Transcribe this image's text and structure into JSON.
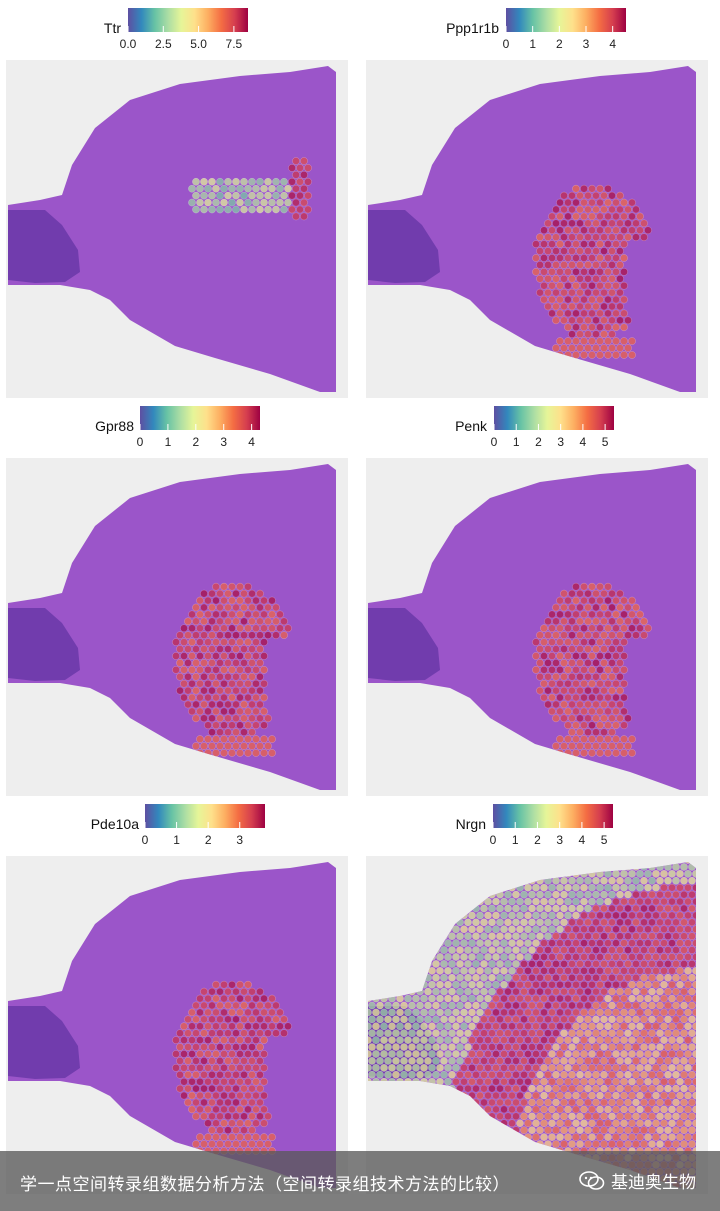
{
  "chart_data": [
    {
      "type": "heatmap",
      "gene": "Ttr",
      "legend_ticks": [
        "0.0",
        "2.5",
        "5.0",
        "7.5"
      ],
      "scale_min": 0,
      "scale_max": 8.5,
      "pattern": "ventricle"
    },
    {
      "type": "heatmap",
      "gene": "Ppp1r1b",
      "legend_ticks": [
        "0",
        "1",
        "2",
        "3",
        "4"
      ],
      "scale_min": 0,
      "scale_max": 4.5,
      "pattern": "striatum"
    },
    {
      "type": "heatmap",
      "gene": "Gpr88",
      "legend_ticks": [
        "0",
        "1",
        "2",
        "3",
        "4"
      ],
      "scale_min": 0,
      "scale_max": 4.3,
      "pattern": "striatum"
    },
    {
      "type": "heatmap",
      "gene": "Penk",
      "legend_ticks": [
        "0",
        "1",
        "2",
        "3",
        "4",
        "5"
      ],
      "scale_min": 0,
      "scale_max": 5.4,
      "pattern": "striatum"
    },
    {
      "type": "heatmap",
      "gene": "Pde10a",
      "legend_ticks": [
        "0",
        "1",
        "2",
        "3"
      ],
      "scale_min": 0,
      "scale_max": 3.8,
      "pattern": "striatum"
    },
    {
      "type": "heatmap",
      "gene": "Nrgn",
      "legend_ticks": [
        "0",
        "1",
        "2",
        "3",
        "4",
        "5"
      ],
      "scale_min": 0,
      "scale_max": 5.4,
      "pattern": "cortex"
    }
  ],
  "colorscale": [
    "#5e4fa2",
    "#3288bd",
    "#66c2a5",
    "#abdda4",
    "#e6f598",
    "#fee08b",
    "#fdae61",
    "#f46d43",
    "#d53e4f",
    "#9e0142"
  ],
  "tissue_color": "#9b55c9",
  "caption": "学一点空间转录组数据分析方法（空间转录组技术方法的比较）",
  "brand": "基迪奥生物"
}
